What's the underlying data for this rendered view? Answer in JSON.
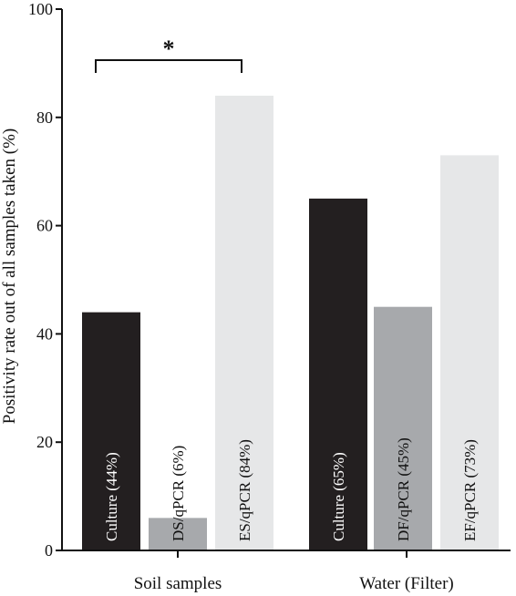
{
  "chart_data": {
    "type": "bar",
    "ylabel": "Positivity rate out of all samples taken (%)",
    "ylim": [
      0,
      100
    ],
    "yticks": [
      0,
      20,
      40,
      60,
      80,
      100
    ],
    "groups": [
      {
        "name": "Soil samples",
        "bars": [
          {
            "label": "Culture (44%)",
            "value": 44,
            "color": "#231f20",
            "text_color": "#ffffff"
          },
          {
            "label": "DS/qPCR (6%)",
            "value": 6,
            "color": "#a7a9ac",
            "text_color": "#111111"
          },
          {
            "label": "ES/qPCR (84%)",
            "value": 84,
            "color": "#e6e7e8",
            "text_color": "#111111"
          }
        ]
      },
      {
        "name": "Water  (Filter)",
        "bars": [
          {
            "label": "Culture (65%)",
            "value": 65,
            "color": "#231f20",
            "text_color": "#ffffff"
          },
          {
            "label": "DF/qPCR (45%)",
            "value": 45,
            "color": "#a7a9ac",
            "text_color": "#111111"
          },
          {
            "label": "EF/qPCR (73%)",
            "value": 73,
            "color": "#e6e7e8",
            "text_color": "#111111"
          }
        ]
      }
    ],
    "annotations": [
      {
        "text": "*",
        "from": "Culture (44%)",
        "to": "ES/qPCR (84%)"
      }
    ]
  }
}
